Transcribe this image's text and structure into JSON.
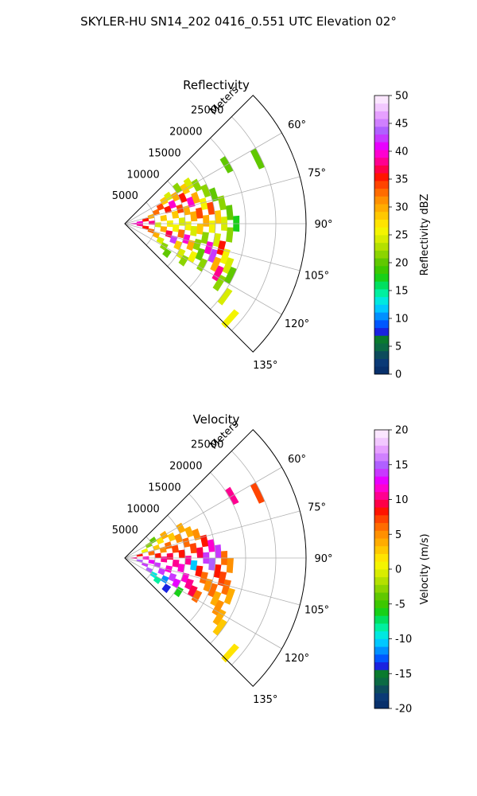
{
  "figure_title": "SKYLER-HU  SN14_202  0416_0.551 UTC Elevation 02°",
  "colors": {
    "reflectivity_scale": [
      "#08306b",
      "#0b3a76",
      "#0d4b5c",
      "#0b6a44",
      "#0a7a2e",
      "#1a23e0",
      "#0057ff",
      "#0090ff",
      "#00c8ff",
      "#00e8e0",
      "#00f0a0",
      "#00e060",
      "#18d018",
      "#3cc800",
      "#60c800",
      "#8cd400",
      "#b4e000",
      "#d8ec00",
      "#f4f400",
      "#ffe400",
      "#ffc800",
      "#ffac00",
      "#ff9000",
      "#ff6c00",
      "#ff4400",
      "#ff1400",
      "#ff0048",
      "#ff0090",
      "#ff00d0",
      "#e800ff",
      "#c838ff",
      "#b060ff",
      "#d080ff",
      "#e6a0ff",
      "#f2c8ff",
      "#fbe6ff"
    ],
    "velocity_scale": [
      "#08306b",
      "#0b3a76",
      "#0d4b5c",
      "#0b6a44",
      "#0a7a2e",
      "#1a23e0",
      "#0057ff",
      "#0090ff",
      "#00c8ff",
      "#00e8e0",
      "#00f0a0",
      "#00e060",
      "#18d018",
      "#3cc800",
      "#60c800",
      "#8cd400",
      "#b4e000",
      "#d8ec00",
      "#f4f400",
      "#ffe400",
      "#ffc800",
      "#ffac00",
      "#ff9000",
      "#ff6c00",
      "#ff4400",
      "#ff1400",
      "#ff0048",
      "#ff0090",
      "#ff00d0",
      "#e800ff",
      "#c838ff",
      "#b060ff",
      "#d080ff",
      "#e6a0ff",
      "#f2c8ff",
      "#fbe6ff"
    ],
    "grid": "#b0b0b0"
  },
  "chart_data": [
    {
      "type": "heatmap",
      "projection": "polar-sector",
      "title": "Reflectivity",
      "radial_label": "Meters",
      "radial_ticks": [
        5000,
        10000,
        15000,
        20000,
        25000
      ],
      "radial_range": [
        0,
        30000
      ],
      "angle_ticks": [
        "60°",
        "75°",
        "90°",
        "105°",
        "120°",
        "135°"
      ],
      "angle_range_deg": [
        45,
        135
      ],
      "grid": true,
      "colorbar": {
        "label": "Reflectivity dBZ",
        "range": [
          0,
          50
        ],
        "ticks": [
          0,
          5,
          10,
          15,
          20,
          25,
          30,
          35,
          40,
          45,
          50
        ]
      },
      "cells": [
        {
          "az": 90,
          "r": 1500,
          "v": 40
        },
        {
          "az": 85,
          "r": 2500,
          "v": 40
        },
        {
          "az": 95,
          "r": 2500,
          "v": 38
        },
        {
          "az": 80,
          "r": 3500,
          "v": 36
        },
        {
          "az": 100,
          "r": 3500,
          "v": 35
        },
        {
          "az": 88,
          "r": 4500,
          "v": 38
        },
        {
          "az": 75,
          "r": 4500,
          "v": 30
        },
        {
          "az": 105,
          "r": 4500,
          "v": 33
        },
        {
          "az": 70,
          "r": 5500,
          "v": 32
        },
        {
          "az": 92,
          "r": 5500,
          "v": 24
        },
        {
          "az": 110,
          "r": 5500,
          "v": 30
        },
        {
          "az": 65,
          "r": 6500,
          "v": 34
        },
        {
          "az": 82,
          "r": 6500,
          "v": 28
        },
        {
          "az": 98,
          "r": 6500,
          "v": 30
        },
        {
          "az": 115,
          "r": 6500,
          "v": 24
        },
        {
          "az": 60,
          "r": 7500,
          "v": 28
        },
        {
          "az": 72,
          "r": 7500,
          "v": 36
        },
        {
          "az": 90,
          "r": 7500,
          "v": 26
        },
        {
          "az": 103,
          "r": 7500,
          "v": 37
        },
        {
          "az": 120,
          "r": 7500,
          "v": 22
        },
        {
          "az": 58,
          "r": 8500,
          "v": 24
        },
        {
          "az": 68,
          "r": 8500,
          "v": 40
        },
        {
          "az": 80,
          "r": 8500,
          "v": 28
        },
        {
          "az": 95,
          "r": 8500,
          "v": 25
        },
        {
          "az": 108,
          "r": 8500,
          "v": 42
        },
        {
          "az": 125,
          "r": 8500,
          "v": 20
        },
        {
          "az": 62,
          "r": 9500,
          "v": 30
        },
        {
          "az": 75,
          "r": 9500,
          "v": 34
        },
        {
          "az": 88,
          "r": 9500,
          "v": 24
        },
        {
          "az": 100,
          "r": 9500,
          "v": 32
        },
        {
          "az": 112,
          "r": 9500,
          "v": 28
        },
        {
          "az": 56,
          "r": 10500,
          "v": 22
        },
        {
          "az": 66,
          "r": 10500,
          "v": 36
        },
        {
          "az": 78,
          "r": 10500,
          "v": 30
        },
        {
          "az": 92,
          "r": 10500,
          "v": 26
        },
        {
          "az": 104,
          "r": 10500,
          "v": 40
        },
        {
          "az": 118,
          "r": 10500,
          "v": 24
        },
        {
          "az": 60,
          "r": 11500,
          "v": 28
        },
        {
          "az": 72,
          "r": 11500,
          "v": 40
        },
        {
          "az": 84,
          "r": 11500,
          "v": 30
        },
        {
          "az": 96,
          "r": 11500,
          "v": 24
        },
        {
          "az": 108,
          "r": 11500,
          "v": 30
        },
        {
          "az": 122,
          "r": 11500,
          "v": 22
        },
        {
          "az": 58,
          "r": 12500,
          "v": 24
        },
        {
          "az": 70,
          "r": 12500,
          "v": 30
        },
        {
          "az": 82,
          "r": 12500,
          "v": 34
        },
        {
          "az": 94,
          "r": 12500,
          "v": 28
        },
        {
          "az": 106,
          "r": 12500,
          "v": 22
        },
        {
          "az": 116,
          "r": 12500,
          "v": 26
        },
        {
          "az": 62,
          "r": 13500,
          "v": 22
        },
        {
          "az": 76,
          "r": 13500,
          "v": 26
        },
        {
          "az": 88,
          "r": 13500,
          "v": 30
        },
        {
          "az": 100,
          "r": 13500,
          "v": 22
        },
        {
          "az": 112,
          "r": 13500,
          "v": 20
        },
        {
          "az": 68,
          "r": 14500,
          "v": 22
        },
        {
          "az": 80,
          "r": 14500,
          "v": 34
        },
        {
          "az": 92,
          "r": 14500,
          "v": 26
        },
        {
          "az": 106,
          "r": 14500,
          "v": 40
        },
        {
          "az": 118,
          "r": 14500,
          "v": 22
        },
        {
          "az": 72,
          "r": 15500,
          "v": 20
        },
        {
          "az": 86,
          "r": 15500,
          "v": 28
        },
        {
          "az": 100,
          "r": 15500,
          "v": 24
        },
        {
          "az": 110,
          "r": 15500,
          "v": 42
        },
        {
          "az": 78,
          "r": 16500,
          "v": 22
        },
        {
          "az": 90,
          "r": 16500,
          "v": 24
        },
        {
          "az": 104,
          "r": 16500,
          "v": 36
        },
        {
          "az": 114,
          "r": 16500,
          "v": 30
        },
        {
          "az": 84,
          "r": 17500,
          "v": 20
        },
        {
          "az": 96,
          "r": 17500,
          "v": 22
        },
        {
          "az": 108,
          "r": 17500,
          "v": 26
        },
        {
          "az": 118,
          "r": 17500,
          "v": 38
        },
        {
          "az": 90,
          "r": 18500,
          "v": 18
        },
        {
          "az": 112,
          "r": 18500,
          "v": 24
        },
        {
          "az": 122,
          "r": 18500,
          "v": 22
        },
        {
          "az": 60,
          "r": 19500,
          "v": 20
        },
        {
          "az": 116,
          "r": 19500,
          "v": 20
        },
        {
          "az": 126,
          "r": 20500,
          "v": 24
        },
        {
          "az": 64,
          "r": 24500,
          "v": 20
        },
        {
          "az": 132,
          "r": 23500,
          "v": 26
        }
      ]
    },
    {
      "type": "heatmap",
      "projection": "polar-sector",
      "title": "Velocity",
      "radial_label": "Meters",
      "radial_ticks": [
        5000,
        10000,
        15000,
        20000,
        25000
      ],
      "radial_range": [
        0,
        30000
      ],
      "angle_ticks": [
        "60°",
        "75°",
        "90°",
        "105°",
        "120°",
        "135°"
      ],
      "angle_range_deg": [
        45,
        135
      ],
      "grid": true,
      "colorbar": {
        "label": "Velocity (m/s)",
        "range": [
          -20,
          20
        ],
        "ticks": [
          -20,
          -15,
          -10,
          -5,
          0,
          5,
          10,
          15,
          20
        ]
      },
      "cells": [
        {
          "az": 90,
          "r": 1500,
          "v": 10
        },
        {
          "az": 80,
          "r": 2500,
          "v": 8
        },
        {
          "az": 100,
          "r": 2500,
          "v": 15
        },
        {
          "az": 70,
          "r": 3500,
          "v": 1
        },
        {
          "az": 90,
          "r": 3500,
          "v": 12
        },
        {
          "az": 108,
          "r": 3500,
          "v": 14
        },
        {
          "az": 62,
          "r": 4500,
          "v": -3
        },
        {
          "az": 80,
          "r": 4500,
          "v": 6
        },
        {
          "az": 98,
          "r": 4500,
          "v": 13
        },
        {
          "az": 116,
          "r": 4500,
          "v": 15
        },
        {
          "az": 58,
          "r": 5500,
          "v": -4
        },
        {
          "az": 72,
          "r": 5500,
          "v": 3
        },
        {
          "az": 86,
          "r": 5500,
          "v": 8
        },
        {
          "az": 102,
          "r": 5500,
          "v": 14
        },
        {
          "az": 120,
          "r": 5500,
          "v": -10
        },
        {
          "az": 64,
          "r": 6500,
          "v": 2
        },
        {
          "az": 78,
          "r": 6500,
          "v": 5
        },
        {
          "az": 92,
          "r": 6500,
          "v": 10
        },
        {
          "az": 110,
          "r": 6500,
          "v": 14
        },
        {
          "az": 124,
          "r": 6500,
          "v": -8
        },
        {
          "az": 60,
          "r": 7500,
          "v": 4
        },
        {
          "az": 74,
          "r": 7500,
          "v": 6
        },
        {
          "az": 88,
          "r": 7500,
          "v": 9
        },
        {
          "az": 104,
          "r": 7500,
          "v": 12
        },
        {
          "az": 118,
          "r": 7500,
          "v": -12
        },
        {
          "az": 66,
          "r": 8500,
          "v": 3
        },
        {
          "az": 80,
          "r": 8500,
          "v": 7
        },
        {
          "az": 96,
          "r": 8500,
          "v": 11
        },
        {
          "az": 112,
          "r": 8500,
          "v": 14
        },
        {
          "az": 126,
          "r": 8500,
          "v": -14
        },
        {
          "az": 70,
          "r": 9500,
          "v": 5
        },
        {
          "az": 86,
          "r": 9500,
          "v": 8
        },
        {
          "az": 100,
          "r": 9500,
          "v": 12
        },
        {
          "az": 116,
          "r": 9500,
          "v": 13
        },
        {
          "az": 62,
          "r": 10500,
          "v": 4
        },
        {
          "az": 76,
          "r": 10500,
          "v": 6
        },
        {
          "az": 92,
          "r": 10500,
          "v": 10
        },
        {
          "az": 108,
          "r": 10500,
          "v": 12
        },
        {
          "az": 122,
          "r": 10500,
          "v": -6
        },
        {
          "az": 68,
          "r": 11500,
          "v": 4
        },
        {
          "az": 82,
          "r": 11500,
          "v": 7
        },
        {
          "az": 96,
          "r": 11500,
          "v": -11
        },
        {
          "az": 112,
          "r": 11500,
          "v": 10
        },
        {
          "az": 72,
          "r": 12500,
          "v": 5
        },
        {
          "az": 86,
          "r": 12500,
          "v": 9
        },
        {
          "az": 100,
          "r": 12500,
          "v": 8
        },
        {
          "az": 116,
          "r": 12500,
          "v": 9
        },
        {
          "az": 78,
          "r": 13500,
          "v": 8
        },
        {
          "az": 90,
          "r": 13500,
          "v": 14
        },
        {
          "az": 104,
          "r": 13500,
          "v": 6
        },
        {
          "az": 118,
          "r": 13500,
          "v": 6
        },
        {
          "az": 82,
          "r": 14500,
          "v": 12
        },
        {
          "az": 94,
          "r": 14500,
          "v": 15
        },
        {
          "az": 108,
          "r": 14500,
          "v": 5
        },
        {
          "az": 86,
          "r": 15500,
          "v": 14
        },
        {
          "az": 98,
          "r": 15500,
          "v": 8
        },
        {
          "az": 110,
          "r": 15500,
          "v": 6
        },
        {
          "az": 90,
          "r": 16500,
          "v": 6
        },
        {
          "az": 102,
          "r": 16500,
          "v": 7
        },
        {
          "az": 114,
          "r": 16500,
          "v": 4
        },
        {
          "az": 94,
          "r": 17500,
          "v": 5
        },
        {
          "az": 106,
          "r": 17500,
          "v": 6
        },
        {
          "az": 118,
          "r": 17500,
          "v": 5
        },
        {
          "az": 110,
          "r": 18500,
          "v": 4
        },
        {
          "az": 122,
          "r": 18500,
          "v": 4
        },
        {
          "az": 126,
          "r": 19500,
          "v": 3
        },
        {
          "az": 60,
          "r": 20500,
          "v": 10
        },
        {
          "az": 64,
          "r": 24500,
          "v": 7
        },
        {
          "az": 132,
          "r": 23500,
          "v": 2
        }
      ]
    }
  ]
}
